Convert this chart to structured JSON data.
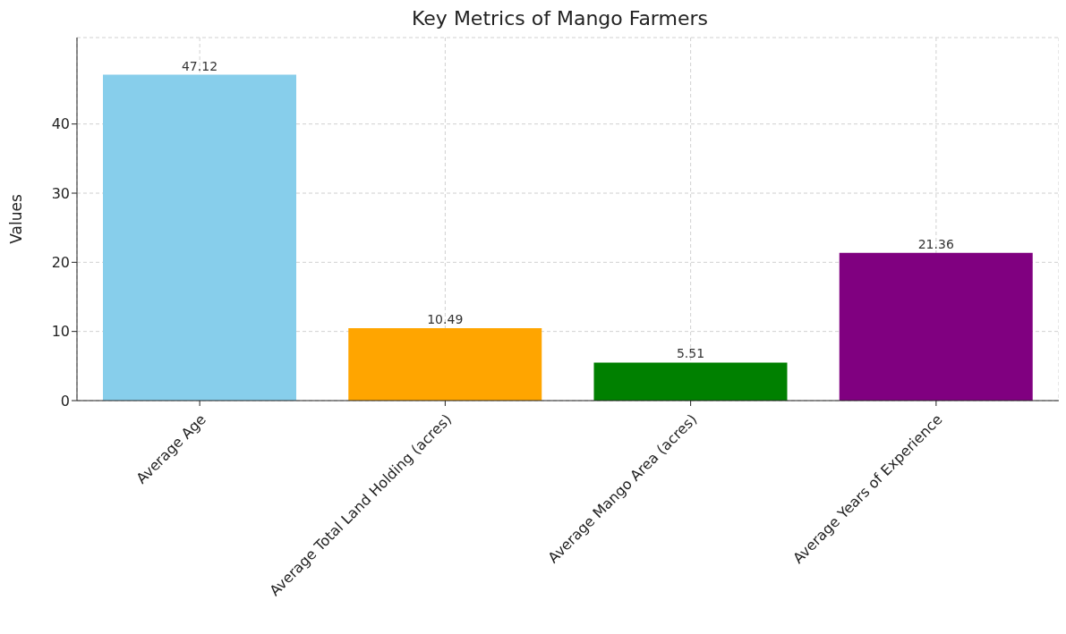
{
  "chart_data": {
    "type": "bar",
    "title": "Key Metrics of Mango Farmers",
    "ylabel": "Values",
    "categories": [
      "Average Age",
      "Average Total Land Holding (acres)",
      "Average Mango Area (acres)",
      "Average Years of Experience"
    ],
    "values": [
      47.12,
      10.49,
      5.51,
      21.36
    ],
    "colors": [
      "#87ceeb",
      "#ffa500",
      "#008000",
      "#800080"
    ],
    "ylim": [
      0,
      52.5
    ],
    "yticks": [
      0,
      10,
      20,
      30,
      40
    ],
    "grid": true,
    "data_labels": true
  }
}
